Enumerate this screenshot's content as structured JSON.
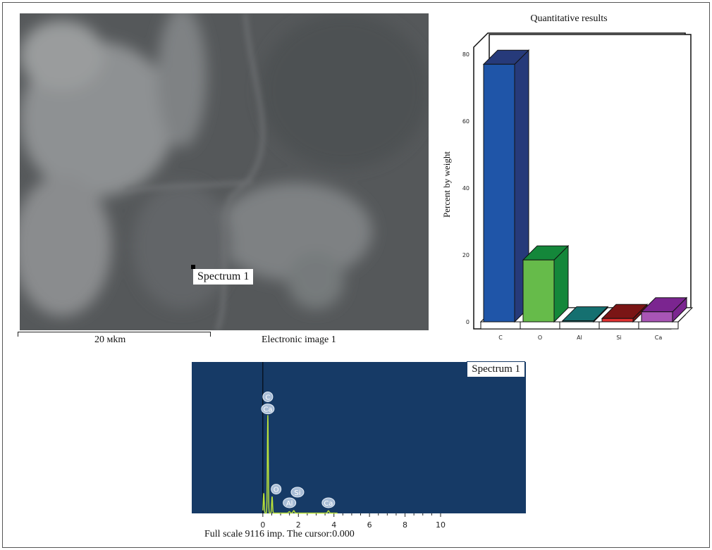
{
  "sem_image": {
    "marker_label": "Spectrum 1",
    "scale_bar_label": "20 мkm",
    "caption": "Electronic image 1"
  },
  "chart_data": [
    {
      "type": "bar",
      "title": "Quantitative results",
      "ylabel": "Percent by weight",
      "xlabel": "",
      "categories": [
        "C",
        "O",
        "Al",
        "Si",
        "Ca"
      ],
      "values": [
        77,
        18.5,
        0.3,
        1,
        3
      ],
      "colors": [
        "#1f55a8",
        "#66bb4a",
        "#1a8a8a",
        "#e03030",
        "#a855b5"
      ],
      "side_colors": [
        "#263a7a",
        "#14873a",
        "#157070",
        "#7a1515",
        "#7b2590"
      ],
      "ylim": [
        0,
        80
      ],
      "yticks": [
        0,
        20,
        40,
        60,
        80
      ],
      "style": "3d",
      "grid": false
    },
    {
      "type": "line",
      "title": "Spectrum 1",
      "xlabel": "",
      "ylabel": "",
      "xlim": [
        -4,
        14.8
      ],
      "xticks": [
        0,
        2,
        4,
        6,
        8,
        10
      ],
      "full_scale": 9116,
      "background": "#163a66",
      "line_color": "#b8e03a",
      "peaks": [
        {
          "energy": 0.05,
          "counts": 1200
        },
        {
          "energy": 0.28,
          "counts": 5900
        },
        {
          "energy": 0.52,
          "counts": 1000
        },
        {
          "energy": 1.49,
          "counts": 90
        },
        {
          "energy": 1.74,
          "counts": 150
        },
        {
          "energy": 3.69,
          "counts": 140
        }
      ],
      "peak_labels": [
        {
          "label": "C",
          "energy": 0.28,
          "level": 0.77
        },
        {
          "label": "Ca",
          "energy": 0.28,
          "level": 0.69
        },
        {
          "label": "O",
          "energy": 0.55,
          "level": 0.16
        },
        {
          "label": "Si",
          "energy": 1.75,
          "level": 0.14
        },
        {
          "label": "Al",
          "energy": 1.5,
          "level": 0.07
        },
        {
          "label": "Ca",
          "energy": 3.69,
          "level": 0.07
        }
      ],
      "footer": "Full scale 9116 imp. The cursor:0.000"
    }
  ]
}
